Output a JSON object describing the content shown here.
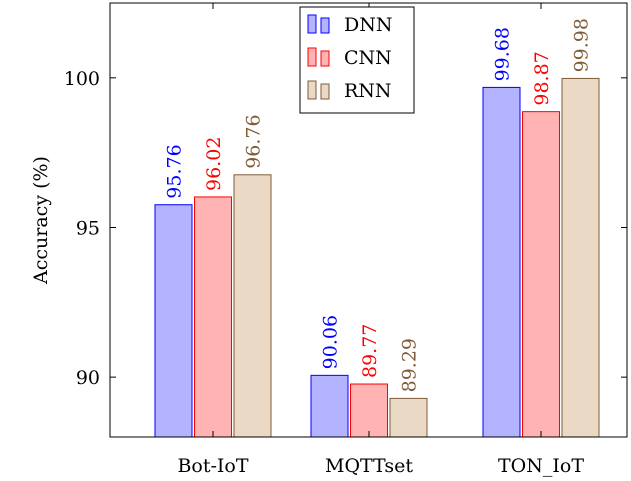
{
  "chart_data": {
    "type": "bar",
    "categories": [
      "Bot-IoT",
      "MQTTset",
      "TON_IoT"
    ],
    "series": [
      {
        "name": "DNN",
        "values": [
          95.76,
          90.06,
          99.68
        ],
        "labels": [
          "95.76",
          "90.06",
          "99.68"
        ],
        "fill": "#b3b3ff",
        "stroke": "#0000ff",
        "label_color": "#0000ff"
      },
      {
        "name": "CNN",
        "values": [
          96.02,
          89.77,
          98.87
        ],
        "labels": [
          "96.02",
          "89.77",
          "98.87"
        ],
        "fill": "#ffb3b3",
        "stroke": "#ff0000",
        "label_color": "#ff0000"
      },
      {
        "name": "RNN",
        "values": [
          96.76,
          89.29,
          99.98
        ],
        "labels": [
          "96.76",
          "89.29",
          "99.98"
        ],
        "fill": "#ead9c5",
        "stroke": "#7f5a36",
        "label_color": "#7f5a36"
      }
    ],
    "ylabel": "Accuracy (%)",
    "ylim": [
      88,
      102.5
    ],
    "yticks": [
      90,
      95,
      100
    ],
    "grid": false,
    "legend_position": "top-center"
  }
}
